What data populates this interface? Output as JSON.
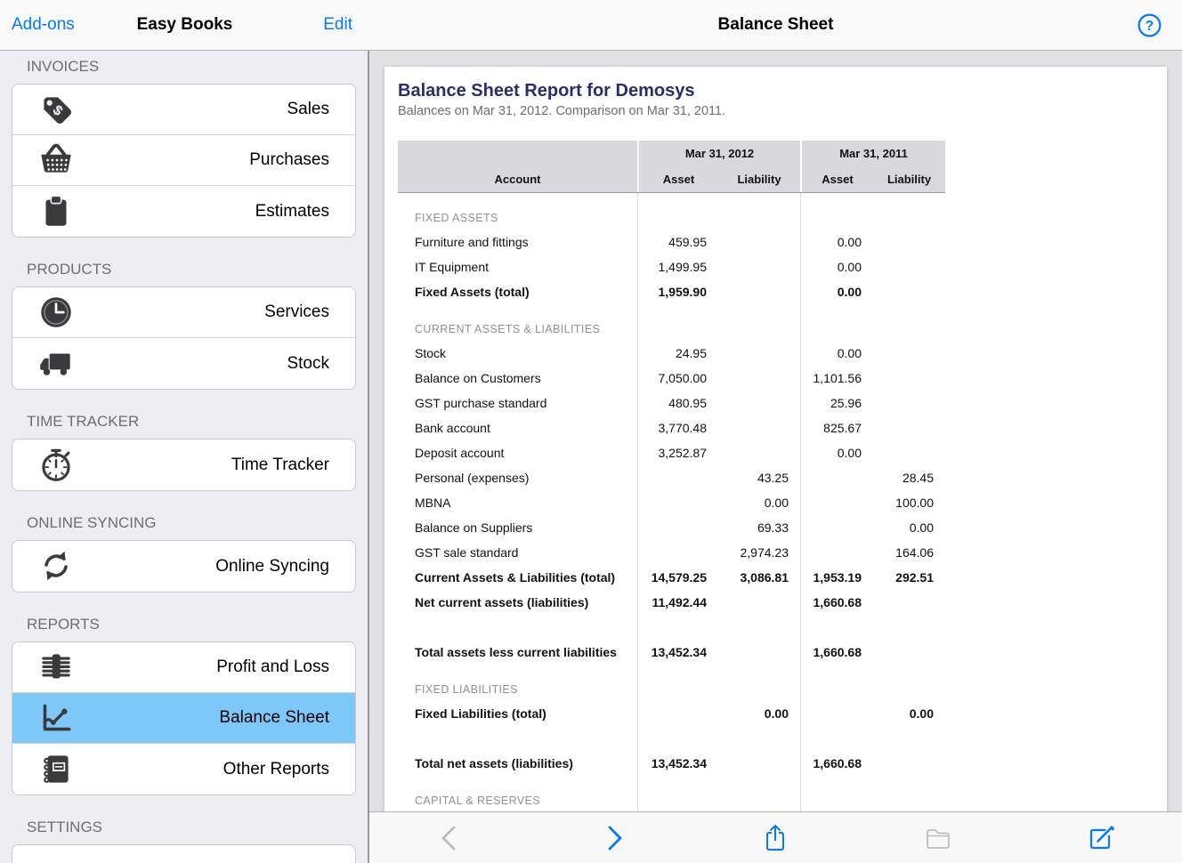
{
  "sidebar": {
    "nav": {
      "left_button": "Add-ons",
      "title": "Easy Books",
      "right_button": "Edit"
    },
    "sections": [
      {
        "label": "INVOICES",
        "items": [
          {
            "icon": "price-tag",
            "label": "Sales",
            "selected": false
          },
          {
            "icon": "basket",
            "label": "Purchases",
            "selected": false
          },
          {
            "icon": "clipboard",
            "label": "Estimates",
            "selected": false
          }
        ]
      },
      {
        "label": "PRODUCTS",
        "items": [
          {
            "icon": "clock",
            "label": "Services",
            "selected": false
          },
          {
            "icon": "truck",
            "label": "Stock",
            "selected": false
          }
        ]
      },
      {
        "label": "TIME TRACKER",
        "items": [
          {
            "icon": "stopwatch",
            "label": "Time Tracker",
            "selected": false
          }
        ]
      },
      {
        "label": "ONLINE SYNCING",
        "items": [
          {
            "icon": "sync",
            "label": "Online Syncing",
            "selected": false
          }
        ]
      },
      {
        "label": "REPORTS",
        "items": [
          {
            "icon": "money-stack",
            "label": "Profit and Loss",
            "selected": false
          },
          {
            "icon": "line-chart",
            "label": "Balance Sheet",
            "selected": true
          },
          {
            "icon": "notebook",
            "label": "Other Reports",
            "selected": false
          }
        ]
      },
      {
        "label": "SETTINGS",
        "items": []
      }
    ]
  },
  "main": {
    "nav": {
      "title": "Balance Sheet",
      "help_glyph": "?"
    },
    "report": {
      "title": "Balance Sheet Report for Demosys",
      "subtitle": "Balances on Mar 31, 2012. Comparison on Mar 31, 2011.",
      "table": {
        "column_groups": [
          "Mar 31, 2012",
          "Mar 31, 2011"
        ],
        "columns": [
          "Account",
          "Asset",
          "Liability",
          "Asset",
          "Liability"
        ],
        "rows": [
          {
            "type": "section",
            "label": "FIXED ASSETS"
          },
          {
            "type": "row",
            "label": "Furniture and fittings",
            "a1": "459.95",
            "l1": "",
            "a2": "0.00",
            "l2": ""
          },
          {
            "type": "row",
            "label": "IT Equipment",
            "a1": "1,499.95",
            "l1": "",
            "a2": "0.00",
            "l2": ""
          },
          {
            "type": "total",
            "label": "Fixed Assets (total)",
            "a1": "1,959.90",
            "l1": "",
            "a2": "0.00",
            "l2": ""
          },
          {
            "type": "section",
            "label": "CURRENT ASSETS & LIABILITIES"
          },
          {
            "type": "row",
            "label": "Stock",
            "a1": "24.95",
            "l1": "",
            "a2": "0.00",
            "l2": ""
          },
          {
            "type": "row",
            "label": "Balance on Customers",
            "a1": "7,050.00",
            "l1": "",
            "a2": "1,101.56",
            "l2": ""
          },
          {
            "type": "row",
            "label": "GST purchase standard",
            "a1": "480.95",
            "l1": "",
            "a2": "25.96",
            "l2": ""
          },
          {
            "type": "row",
            "label": "Bank account",
            "a1": "3,770.48",
            "l1": "",
            "a2": "825.67",
            "l2": ""
          },
          {
            "type": "row",
            "label": "Deposit account",
            "a1": "3,252.87",
            "l1": "",
            "a2": "0.00",
            "l2": ""
          },
          {
            "type": "row",
            "label": "Personal (expenses)",
            "a1": "",
            "l1": "43.25",
            "a2": "",
            "l2": "28.45"
          },
          {
            "type": "row",
            "label": "MBNA",
            "a1": "",
            "l1": "0.00",
            "a2": "",
            "l2": "100.00"
          },
          {
            "type": "row",
            "label": "Balance on Suppliers",
            "a1": "",
            "l1": "69.33",
            "a2": "",
            "l2": "0.00"
          },
          {
            "type": "row",
            "label": "GST sale standard",
            "a1": "",
            "l1": "2,974.23",
            "a2": "",
            "l2": "164.06"
          },
          {
            "type": "total",
            "label": "Current Assets & Liabilities (total)",
            "a1": "14,579.25",
            "l1": "3,086.81",
            "a2": "1,953.19",
            "l2": "292.51"
          },
          {
            "type": "total",
            "label": "Net current assets (liabilities)",
            "a1": "11,492.44",
            "l1": "",
            "a2": "1,660.68",
            "l2": ""
          },
          {
            "type": "spacer",
            "label": ""
          },
          {
            "type": "total",
            "label": "Total assets less current liabilities",
            "a1": "13,452.34",
            "l1": "",
            "a2": "1,660.68",
            "l2": ""
          },
          {
            "type": "section",
            "label": "FIXED LIABILITIES"
          },
          {
            "type": "total",
            "label": "Fixed Liabilities (total)",
            "a1": "",
            "l1": "0.00",
            "a2": "",
            "l2": "0.00"
          },
          {
            "type": "spacer",
            "label": ""
          },
          {
            "type": "total",
            "label": "Total net assets (liabilities)",
            "a1": "13,452.34",
            "l1": "",
            "a2": "1,660.68",
            "l2": ""
          },
          {
            "type": "section",
            "label": "CAPITAL & RESERVES"
          }
        ]
      }
    },
    "toolbar": {
      "buttons": [
        {
          "name": "back",
          "icon": "chevron-left",
          "enabled": false
        },
        {
          "name": "forward",
          "icon": "chevron-right",
          "enabled": true
        },
        {
          "name": "share",
          "icon": "share",
          "enabled": true
        },
        {
          "name": "folders",
          "icon": "folder",
          "enabled": false
        },
        {
          "name": "compose",
          "icon": "compose",
          "enabled": true
        }
      ]
    }
  },
  "colors": {
    "accent": "#007aff",
    "selected_row": "#7dc8f8",
    "report_title": "#2c2c6a",
    "icon_gray": "#3a3a3c",
    "disabled_gray": "#bcbcc0",
    "table_header_bg": "#d9d9dd"
  }
}
